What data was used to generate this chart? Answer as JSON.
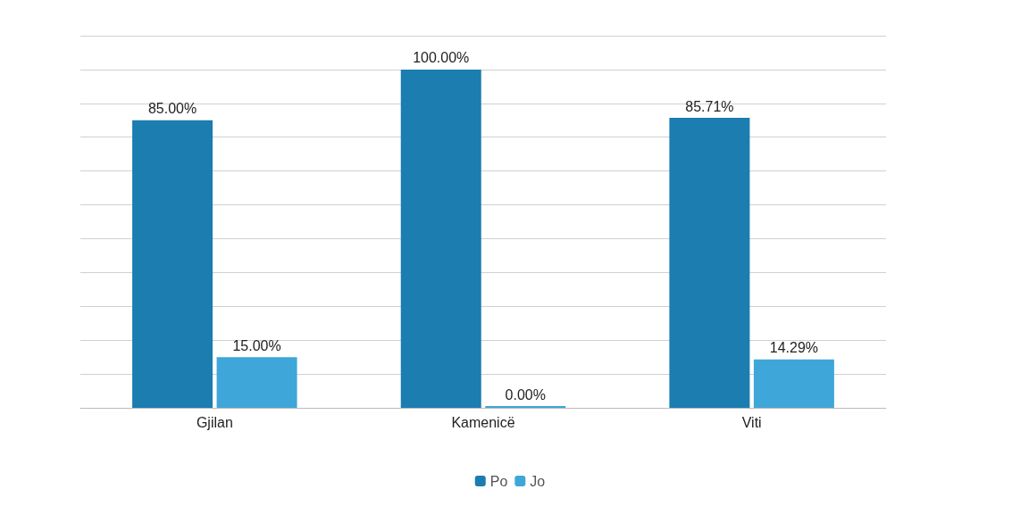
{
  "chart_data": {
    "type": "bar",
    "categories": [
      "Gjilan",
      "Kamenicë",
      "Viti"
    ],
    "series": [
      {
        "name": "Po",
        "color": "#1b7db0",
        "values": [
          85,
          100,
          85.71
        ],
        "value_labels": [
          "85.00%",
          "100.00%",
          "85.71%"
        ]
      },
      {
        "name": "Jo",
        "color": "#3ea6d8",
        "values": [
          15,
          0,
          14.29
        ],
        "value_labels": [
          "15.00%",
          "0.00%",
          "14.29%"
        ]
      }
    ],
    "ylim": [
      0,
      110
    ],
    "yticks": [
      {
        "value": 0,
        "label": null
      },
      {
        "value": 10,
        "label": null
      },
      {
        "value": 20,
        "label": null
      },
      {
        "value": 30,
        "label": null
      },
      {
        "value": 40,
        "label": null
      },
      {
        "value": 50,
        "label": null
      },
      {
        "value": 60,
        "label": null
      },
      {
        "value": 70,
        "label": null
      },
      {
        "value": 80,
        "label": null
      },
      {
        "value": 90,
        "label": null
      },
      {
        "value": 100,
        "label": null
      },
      {
        "value": 110,
        "label": null
      }
    ],
    "tick_labels": "x",
    "grid": "y",
    "legend": "bottom"
  }
}
